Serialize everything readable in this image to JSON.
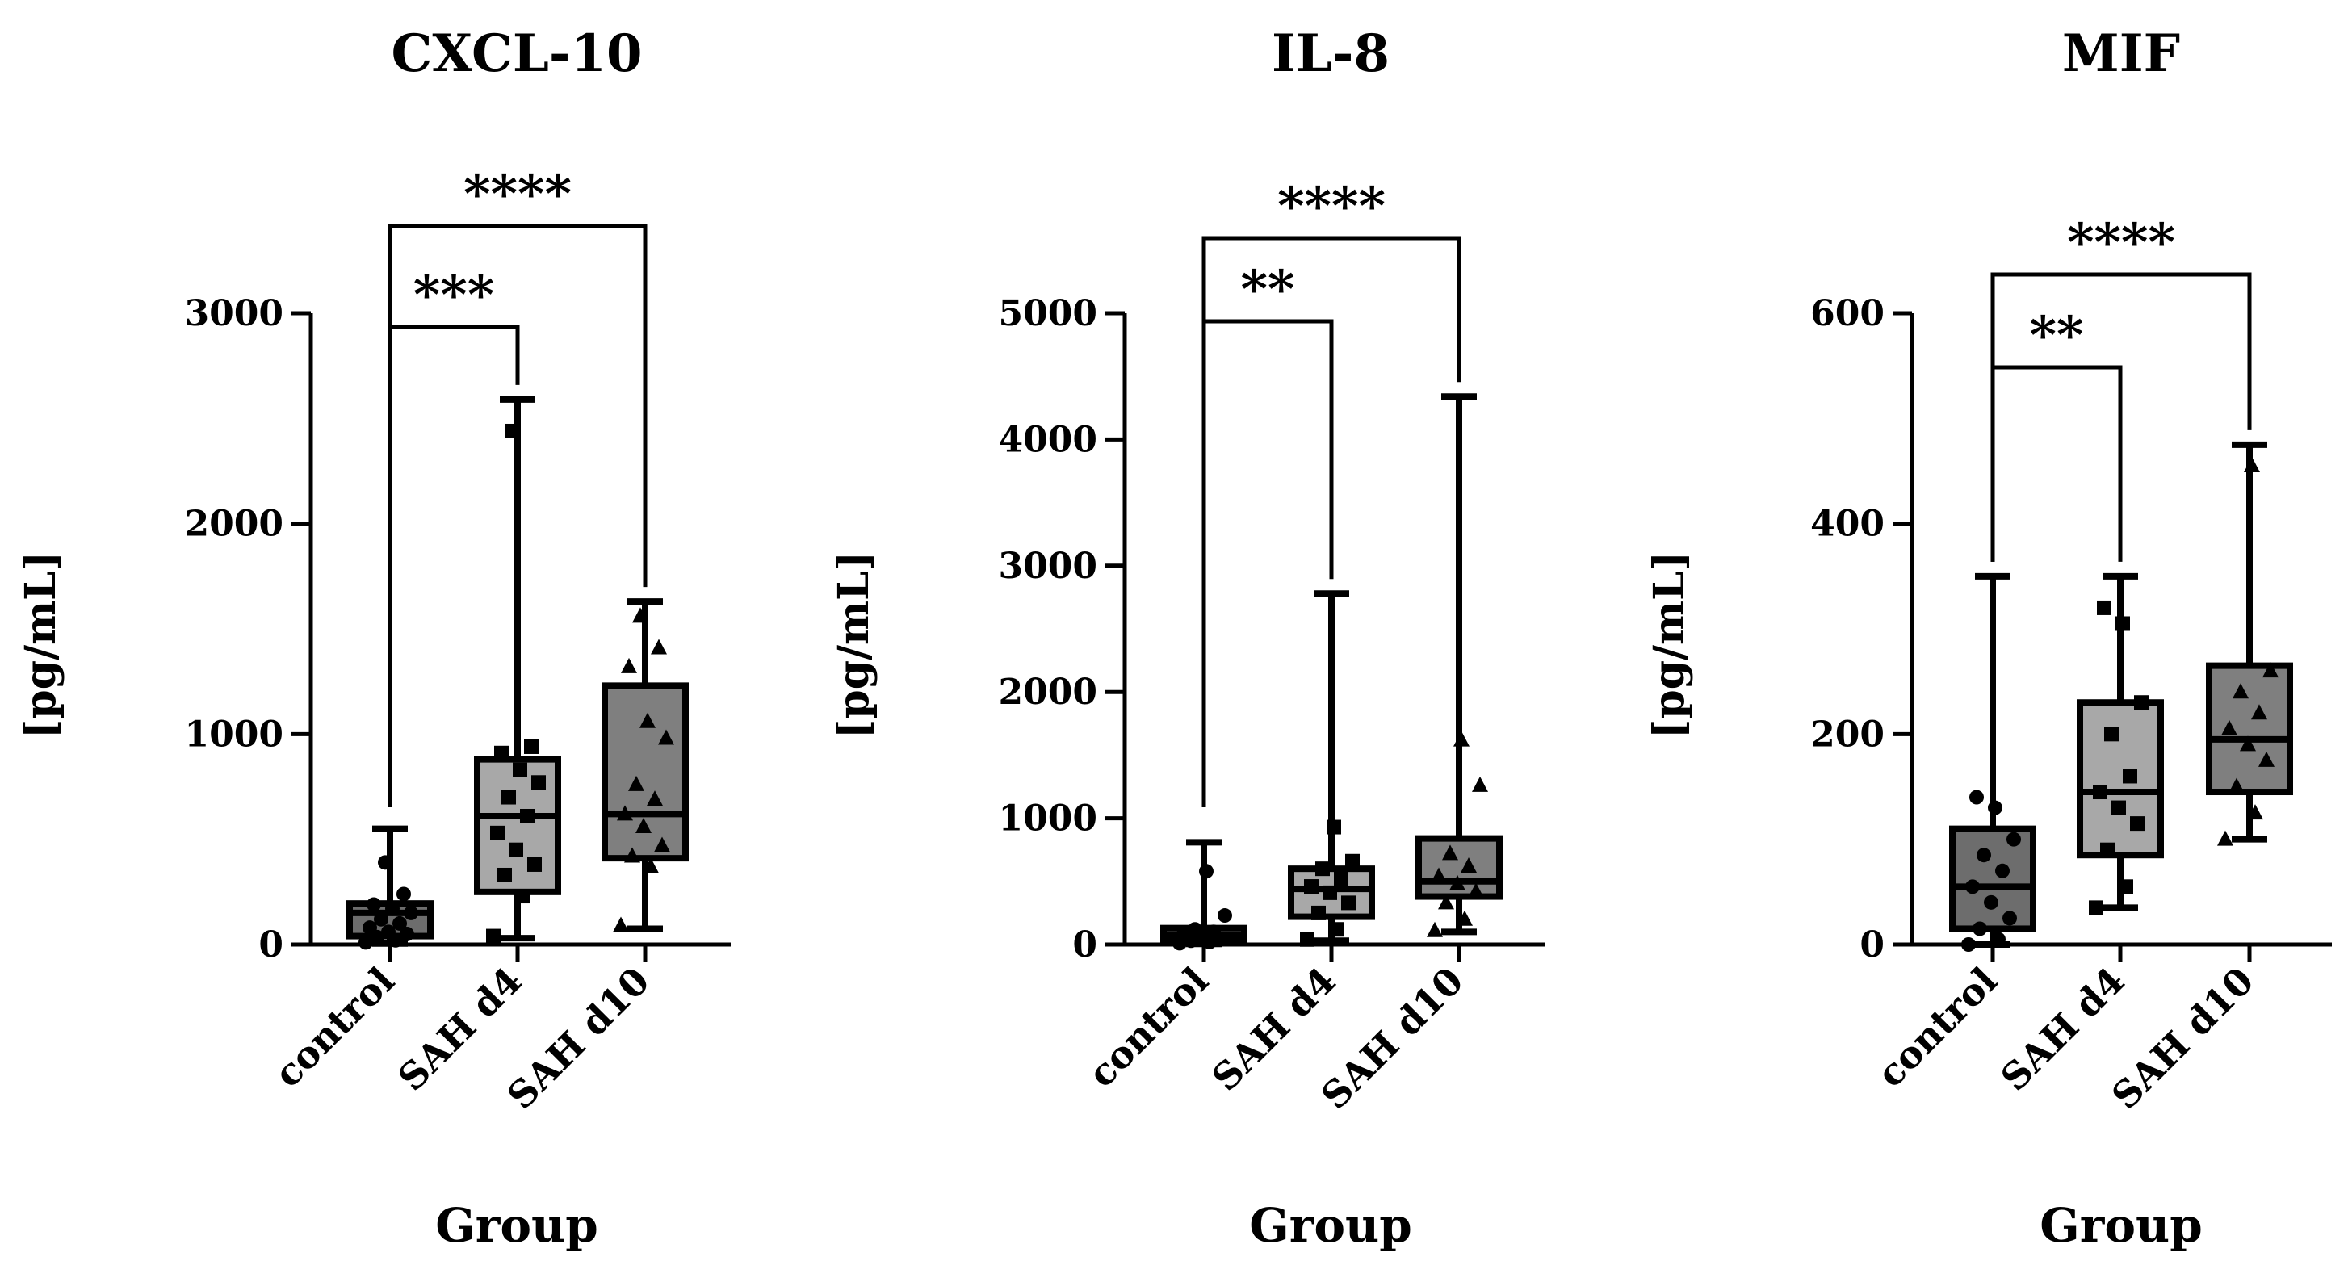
{
  "chart_data": [
    {
      "type": "box",
      "title": "CXCL-10",
      "ylabel": "[pg/mL]",
      "xlabel": "Group",
      "ylim": [
        0,
        3000
      ],
      "yticks": [
        0,
        1000,
        2000,
        3000
      ],
      "categories": [
        "control",
        "SAH d4",
        "SAH d10"
      ],
      "colors": [
        "#6d6d6d",
        "#a8a8a8",
        "#7f7f7f"
      ],
      "markers": [
        "circle",
        "square",
        "triangle"
      ],
      "boxes": [
        {
          "min": 5,
          "q1": 40,
          "median": 150,
          "q3": 195,
          "max": 550,
          "points": [
            10,
            20,
            35,
            50,
            60,
            80,
            100,
            120,
            150,
            170,
            190,
            240,
            390
          ]
        },
        {
          "min": 30,
          "q1": 250,
          "median": 610,
          "q3": 880,
          "max": 2590,
          "points": [
            40,
            230,
            330,
            380,
            450,
            530,
            610,
            700,
            770,
            830,
            910,
            940,
            2440
          ]
        },
        {
          "min": 75,
          "q1": 410,
          "median": 620,
          "q3": 1230,
          "max": 1630,
          "points": [
            90,
            370,
            420,
            470,
            560,
            620,
            690,
            760,
            980,
            1060,
            1320,
            1410,
            1560
          ]
        }
      ],
      "comparisons": [
        {
          "from": 0,
          "to": 1,
          "label": "***"
        },
        {
          "from": 0,
          "to": 2,
          "label": "****"
        }
      ]
    },
    {
      "type": "box",
      "title": "IL-8",
      "ylabel": "[pg/mL]",
      "xlabel": "Group",
      "ylim": [
        0,
        5000
      ],
      "yticks": [
        0,
        1000,
        2000,
        3000,
        4000,
        5000
      ],
      "categories": [
        "control",
        "SAH d4",
        "SAH d10"
      ],
      "colors": [
        "#6d6d6d",
        "#a8a8a8",
        "#7f7f7f"
      ],
      "markers": [
        "circle",
        "square",
        "triangle"
      ],
      "boxes": [
        {
          "min": 5,
          "q1": 20,
          "median": 70,
          "q3": 130,
          "max": 810,
          "points": [
            10,
            20,
            30,
            45,
            60,
            80,
            100,
            120,
            230,
            580
          ]
        },
        {
          "min": 30,
          "q1": 220,
          "median": 440,
          "q3": 600,
          "max": 2780,
          "points": [
            40,
            120,
            250,
            330,
            410,
            460,
            520,
            600,
            660,
            930
          ]
        },
        {
          "min": 100,
          "q1": 380,
          "median": 500,
          "q3": 840,
          "max": 4340,
          "points": [
            110,
            200,
            330,
            420,
            480,
            540,
            620,
            720,
            1260,
            1620
          ]
        }
      ],
      "comparisons": [
        {
          "from": 0,
          "to": 1,
          "label": "**"
        },
        {
          "from": 0,
          "to": 2,
          "label": "****"
        }
      ]
    },
    {
      "type": "box",
      "title": "MIF",
      "ylabel": "[pg/mL]",
      "xlabel": "Group",
      "ylim": [
        0,
        600
      ],
      "yticks": [
        0,
        200,
        400,
        600
      ],
      "categories": [
        "control",
        "SAH d4",
        "SAH d10"
      ],
      "colors": [
        "#6d6d6d",
        "#a8a8a8",
        "#7f7f7f"
      ],
      "markers": [
        "circle",
        "square",
        "triangle"
      ],
      "boxes": [
        {
          "min": 0,
          "q1": 15,
          "median": 55,
          "q3": 110,
          "max": 350,
          "points": [
            0,
            5,
            15,
            25,
            40,
            55,
            70,
            85,
            100,
            130,
            140
          ]
        },
        {
          "min": 35,
          "q1": 85,
          "median": 145,
          "q3": 230,
          "max": 350,
          "points": [
            35,
            55,
            90,
            115,
            130,
            145,
            160,
            200,
            230,
            305,
            320
          ]
        },
        {
          "min": 100,
          "q1": 145,
          "median": 195,
          "q3": 265,
          "max": 475,
          "points": [
            100,
            125,
            150,
            175,
            190,
            205,
            220,
            240,
            260,
            455
          ]
        }
      ],
      "comparisons": [
        {
          "from": 0,
          "to": 1,
          "label": "**"
        },
        {
          "from": 0,
          "to": 2,
          "label": "****"
        }
      ]
    }
  ]
}
